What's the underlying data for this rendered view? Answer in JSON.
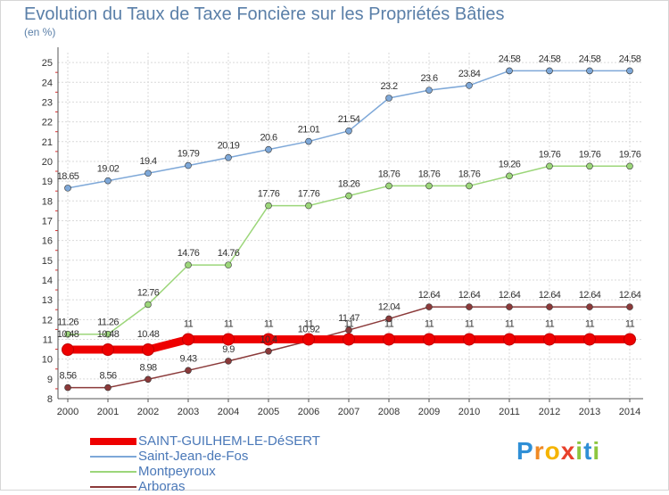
{
  "page": {
    "title": "Evolution du Taux de Taxe Foncière sur les Propriétés Bâties",
    "unit": "(en %)"
  },
  "colors": {
    "background": "#ffffff",
    "grid": "#d9d9d9",
    "axis": "#555555",
    "tick_text": "#333333",
    "title": "#5a7fa8",
    "legend_text": "#4a78b8"
  },
  "logo": {
    "text": "Proxiti",
    "letters": [
      {
        "ch": "P",
        "color": "#2f8fd6"
      },
      {
        "ch": "r",
        "color": "#f08a24"
      },
      {
        "ch": "o",
        "color": "#f5b400"
      },
      {
        "ch": "x",
        "color": "#e8412c"
      },
      {
        "ch": "i",
        "color": "#8dc63f"
      },
      {
        "ch": "t",
        "color": "#2f8fd6"
      },
      {
        "ch": "i",
        "color": "#8dc63f"
      }
    ]
  },
  "chart_data": {
    "type": "line",
    "title": "Evolution du Taux de Taxe Foncière sur les Propriétés Bâties",
    "ylabel": "(en %)",
    "xlabel": "",
    "x": [
      "2000",
      "2001",
      "2002",
      "2003",
      "2004",
      "2005",
      "2006",
      "2007",
      "2008",
      "2009",
      "2010",
      "2011",
      "2012",
      "2013",
      "2014"
    ],
    "yticks": [
      8,
      9,
      10,
      11,
      12,
      13,
      14,
      15,
      16,
      17,
      18,
      19,
      20,
      21,
      22,
      23,
      24,
      25
    ],
    "ylim": [
      8,
      25
    ],
    "grid": true,
    "legend_position": "bottom-left",
    "series": [
      {
        "name": "SAINT-GUILHEM-LE-DéSERT",
        "color": "#ee0000",
        "values": [
          10.48,
          10.48,
          10.48,
          11,
          11,
          11,
          11,
          11,
          11,
          11,
          11,
          11,
          11,
          11,
          11
        ],
        "labels": [
          "10.48",
          "10.48",
          "10.48",
          "11",
          "11",
          "11",
          "11",
          "11",
          "11",
          "11",
          "11",
          "11",
          "11",
          "11",
          "11"
        ]
      },
      {
        "name": "Saint-Jean-de-Fos",
        "color": "#7ea8d8",
        "values": [
          18.65,
          19.02,
          19.4,
          19.79,
          20.19,
          20.6,
          21.01,
          21.54,
          23.2,
          23.6,
          23.84,
          24.58,
          24.58,
          24.58,
          24.58
        ],
        "labels": [
          "18.65",
          "19.02",
          "19.4",
          "19.79",
          "20.19",
          "20.6",
          "21.01",
          "21.54",
          "23.2",
          "23.6",
          "23.84",
          "24.58",
          "24.58",
          "24.58",
          "24.58"
        ]
      },
      {
        "name": "Montpeyroux",
        "color": "#9cd67a",
        "values": [
          11.26,
          11.26,
          12.76,
          14.76,
          14.76,
          17.76,
          17.76,
          18.26,
          18.76,
          18.76,
          18.76,
          19.26,
          19.76,
          19.76,
          19.76
        ],
        "labels": [
          "11.26",
          "11.26",
          "12.76",
          "14.76",
          "14.76",
          "17.76",
          "17.76",
          "18.26",
          "18.76",
          "18.76",
          "18.76",
          "19.26",
          "19.76",
          "19.76",
          "19.76"
        ]
      },
      {
        "name": "Arboras",
        "color": "#8b3a3a",
        "values": [
          8.56,
          8.56,
          8.98,
          9.43,
          9.9,
          10.4,
          10.92,
          11.47,
          12.04,
          12.64,
          12.64,
          12.64,
          12.64,
          12.64,
          12.64
        ],
        "labels": [
          "8.56",
          "8.56",
          "8.98",
          "9.43",
          "9.9",
          "10.4",
          "10.92",
          "11.47",
          "12.04",
          "12.64",
          "12.64",
          "12.64",
          "12.64",
          "12.64",
          "12.64"
        ]
      }
    ]
  }
}
